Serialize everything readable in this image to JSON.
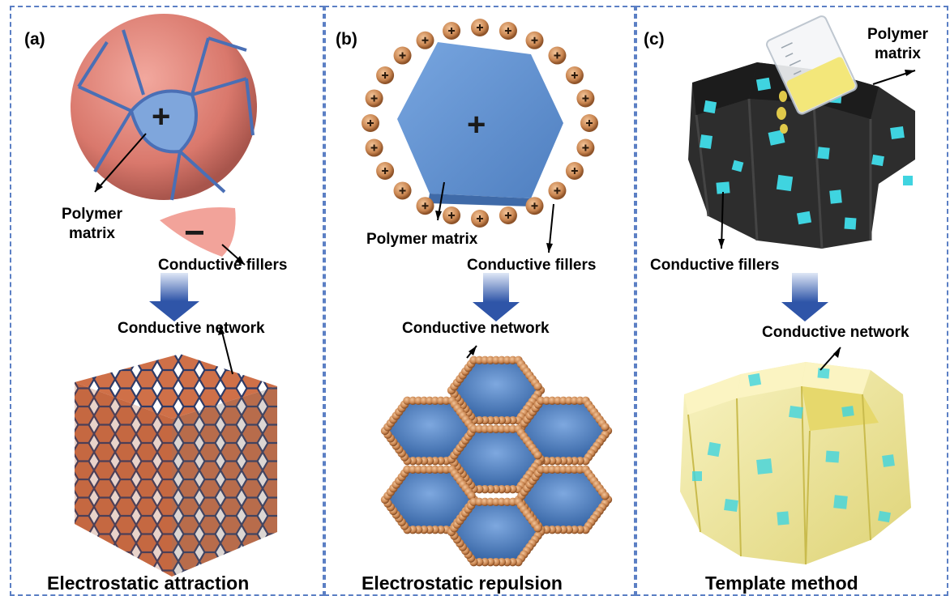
{
  "panels": [
    {
      "label": "(a)",
      "polymer_label": "Polymer\nmatrix",
      "filler_label": "Conductive fillers",
      "network_label": "Conductive network",
      "caption": "Electrostatic attraction",
      "charge_plus": "+",
      "charge_minus": "−"
    },
    {
      "label": "(b)",
      "polymer_label": "Polymer matrix",
      "filler_label": "Conductive fillers",
      "network_label": "Conductive network",
      "caption": "Electrostatic repulsion",
      "charge_plus": "+"
    },
    {
      "label": "(c)",
      "polymer_label": "Polymer\nmatrix",
      "filler_label": "Conductive fillers",
      "network_label": "Conductive network",
      "caption": "Template method"
    }
  ],
  "colors": {
    "border": "#5b7fc4",
    "sphere": "#d9786c",
    "blue_plate": "#5f8fcc",
    "copper": "#c98550",
    "cube": "#cc6f45",
    "template_dark": "#2a2a2a",
    "filler_cyan": "#3fd4e0",
    "yellow": "#efe48a"
  },
  "icons": {
    "arrow": "down-arrow-icon",
    "beaker": "beaker-icon"
  }
}
